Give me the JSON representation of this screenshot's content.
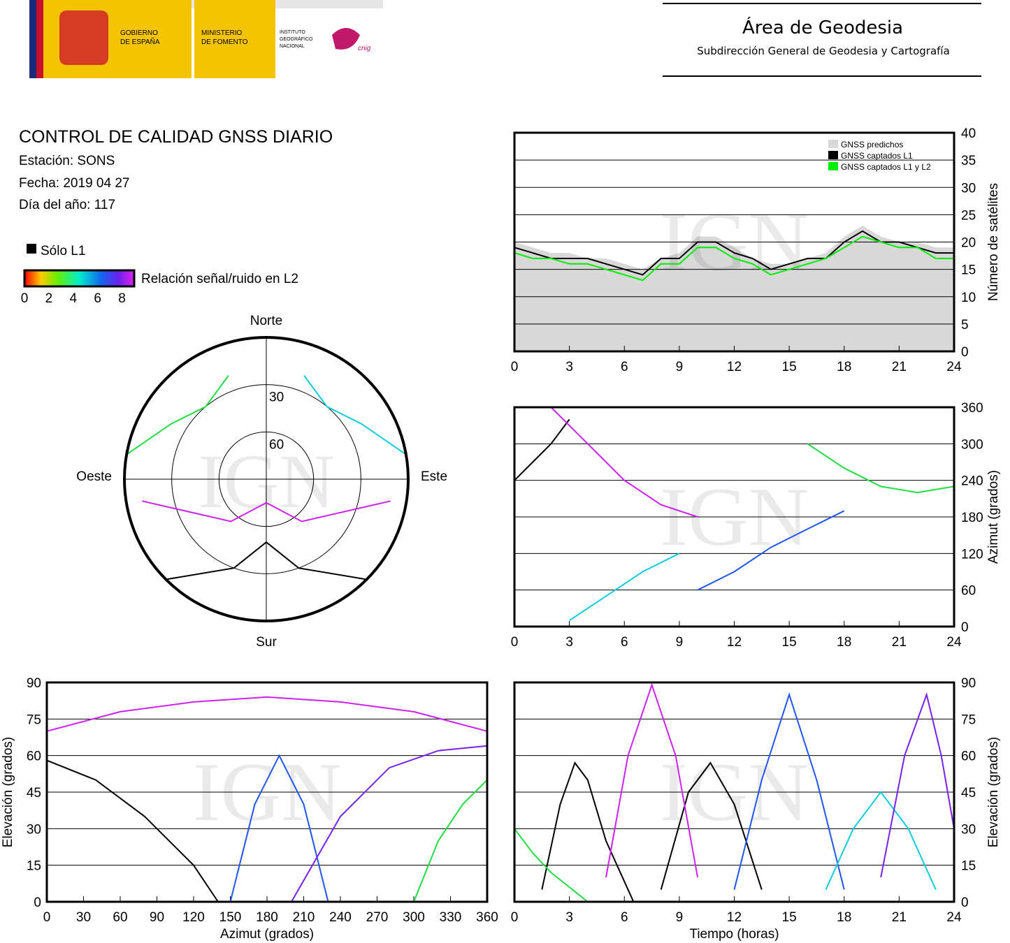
{
  "header": {
    "gov1": "GOBIERNO",
    "gov2": "DE ESPAÑA",
    "min1": "MINISTERIO",
    "min2": "DE FOMENTO",
    "ign1": "INSTITUTO",
    "ign2": "GEOGRÁFICO",
    "ign3": "NACIONAL",
    "cnig": "cnig",
    "area": "Área de Geodesia",
    "sub": "Subdirección General de Geodesia y Cartografía"
  },
  "info": {
    "title": "CONTROL DE CALIDAD GNSS DIARIO",
    "station": "Estación: SONS",
    "date": "Fecha: 2019 04 27",
    "doy": "Día del año: 117"
  },
  "legend": {
    "l1": "Sólo L1",
    "l1_color": "#000000",
    "colorbar": "Relación señal/ruido en L2",
    "ticks": [
      0,
      2,
      4,
      6,
      8
    ],
    "lim": [
      0,
      9
    ]
  },
  "watermark": "IGN",
  "chart_data": [
    {
      "type": "polar",
      "labels": {
        "n": "Norte",
        "s": "Sur",
        "e": "Este",
        "w": "Oeste"
      },
      "rlim": [
        90,
        0
      ],
      "rticks": [
        30,
        60
      ],
      "series": [
        {
          "color": "#000000",
          "x": [
            135,
            160,
            180,
            200,
            225
          ],
          "values": [
            0,
            30,
            50,
            30,
            0
          ]
        },
        {
          "color": "#cc22ee",
          "x": [
            100,
            140,
            180,
            220,
            260
          ],
          "values": [
            10,
            55,
            75,
            55,
            10
          ]
        },
        {
          "color": "#22dd44",
          "x": [
            280,
            300,
            320,
            340
          ],
          "values": [
            0,
            20,
            30,
            20
          ]
        },
        {
          "color": "#11ccdd",
          "x": [
            20,
            40,
            60,
            80
          ],
          "values": [
            20,
            30,
            20,
            0
          ]
        }
      ]
    },
    {
      "type": "line",
      "ylabel": "Número de satélites",
      "xlim": [
        0,
        24
      ],
      "xticks": [
        0,
        3,
        6,
        9,
        12,
        15,
        18,
        21,
        24
      ],
      "ylim": [
        0,
        40
      ],
      "yticks": [
        0,
        5,
        10,
        15,
        20,
        25,
        30,
        35,
        40
      ],
      "grid": true,
      "legend": "upper right",
      "x": [
        0,
        1,
        2,
        3,
        4,
        5,
        6,
        7,
        8,
        9,
        10,
        11,
        12,
        13,
        14,
        15,
        16,
        17,
        18,
        19,
        20,
        21,
        22,
        23,
        24
      ],
      "series": [
        {
          "name": "GNSS predichos",
          "type": "area",
          "color": "#d8d8d8",
          "values": [
            20,
            19,
            18,
            18,
            17,
            17,
            16,
            15,
            17,
            18,
            21,
            21,
            19,
            17,
            16,
            16,
            17,
            18,
            21,
            23,
            21,
            20,
            20,
            19,
            19
          ]
        },
        {
          "name": "GNSS captados L1",
          "color": "#000000",
          "values": [
            19,
            18,
            17,
            17,
            17,
            16,
            15,
            14,
            17,
            17,
            20,
            20,
            18,
            17,
            15,
            16,
            17,
            17,
            20,
            22,
            20,
            20,
            19,
            18,
            18
          ]
        },
        {
          "name": "GNSS captados L1 y L2",
          "color": "#00ee00",
          "values": [
            18,
            17,
            17,
            16,
            16,
            15,
            14,
            13,
            16,
            16,
            19,
            19,
            17,
            16,
            14,
            15,
            16,
            17,
            19,
            21,
            20,
            19,
            19,
            17,
            17
          ]
        }
      ]
    },
    {
      "type": "line",
      "ylabel": "Azimut (grados)",
      "xlim": [
        0,
        24
      ],
      "xticks": [
        0,
        3,
        6,
        9,
        12,
        15,
        18,
        21,
        24
      ],
      "ylim": [
        0,
        360
      ],
      "yticks": [
        0,
        60,
        120,
        180,
        240,
        300,
        360
      ],
      "grid": true,
      "series": [
        {
          "color": "#000000",
          "x": [
            0,
            1,
            2,
            3
          ],
          "values": [
            240,
            270,
            300,
            340
          ]
        },
        {
          "color": "#cc22ee",
          "x": [
            2,
            4,
            6,
            8,
            10
          ],
          "values": [
            360,
            300,
            240,
            200,
            180
          ]
        },
        {
          "color": "#2255ee",
          "x": [
            10,
            12,
            14,
            16,
            18
          ],
          "values": [
            60,
            90,
            130,
            160,
            190
          ]
        },
        {
          "color": "#22dd44",
          "x": [
            16,
            18,
            20,
            22,
            24
          ],
          "values": [
            300,
            260,
            230,
            220,
            230
          ]
        },
        {
          "color": "#11ccdd",
          "x": [
            3,
            5,
            7,
            9
          ],
          "values": [
            10,
            50,
            90,
            120
          ]
        }
      ]
    },
    {
      "type": "line",
      "ylabel": "Elevación (grados)",
      "xlabel": "Azimut (grados)",
      "xlim": [
        0,
        360
      ],
      "xticks": [
        0,
        30,
        60,
        90,
        120,
        150,
        180,
        210,
        240,
        270,
        300,
        330,
        360
      ],
      "ylim": [
        0,
        90
      ],
      "yticks": [
        0,
        15,
        30,
        45,
        60,
        75,
        90
      ],
      "grid": true,
      "series": [
        {
          "color": "#000000",
          "x": [
            0,
            40,
            80,
            120,
            140
          ],
          "values": [
            58,
            50,
            35,
            15,
            0
          ]
        },
        {
          "color": "#cc22ee",
          "x": [
            0,
            60,
            120,
            180,
            240,
            300,
            360
          ],
          "values": [
            70,
            78,
            82,
            84,
            82,
            78,
            70
          ]
        },
        {
          "color": "#2255ee",
          "x": [
            150,
            170,
            190,
            210,
            230
          ],
          "values": [
            0,
            40,
            60,
            40,
            0
          ]
        },
        {
          "color": "#22dd44",
          "x": [
            300,
            320,
            340,
            360
          ],
          "values": [
            0,
            25,
            40,
            50
          ]
        },
        {
          "color": "#7722ee",
          "x": [
            200,
            240,
            280,
            320,
            360
          ],
          "values": [
            0,
            35,
            55,
            62,
            64
          ]
        }
      ]
    },
    {
      "type": "line",
      "ylabel": "Elevación (grados)",
      "xlabel": "Tiempo (horas)",
      "xlim": [
        0,
        24
      ],
      "xticks": [
        0,
        3,
        6,
        9,
        12,
        15,
        18,
        21,
        24
      ],
      "ylim": [
        0,
        90
      ],
      "yticks": [
        0,
        15,
        30,
        45,
        60,
        75,
        90
      ],
      "grid": true,
      "series": [
        {
          "color": "#000000",
          "x": [
            1.5,
            2.5,
            3.3,
            4,
            5,
            6.5
          ],
          "values": [
            5,
            40,
            57,
            50,
            25,
            0
          ]
        },
        {
          "color": "#000000",
          "x": [
            8,
            9.5,
            10.7,
            12,
            13.5
          ],
          "values": [
            5,
            45,
            57,
            40,
            5
          ]
        },
        {
          "color": "#cc22ee",
          "x": [
            5,
            6.2,
            7.5,
            8.8,
            10
          ],
          "values": [
            10,
            60,
            89,
            60,
            10
          ]
        },
        {
          "color": "#2255ee",
          "x": [
            12,
            13.5,
            15,
            16.5,
            18
          ],
          "values": [
            5,
            50,
            85,
            50,
            5
          ]
        },
        {
          "color": "#11ccdd",
          "x": [
            17,
            18.5,
            20,
            21.5,
            23
          ],
          "values": [
            5,
            30,
            45,
            30,
            5
          ]
        },
        {
          "color": "#7722ee",
          "x": [
            20,
            21.3,
            22.5,
            23.3,
            24
          ],
          "values": [
            10,
            60,
            85,
            60,
            30
          ]
        },
        {
          "color": "#22dd44",
          "x": [
            0,
            1,
            2,
            3,
            4
          ],
          "values": [
            30,
            20,
            12,
            6,
            0
          ]
        }
      ]
    }
  ]
}
